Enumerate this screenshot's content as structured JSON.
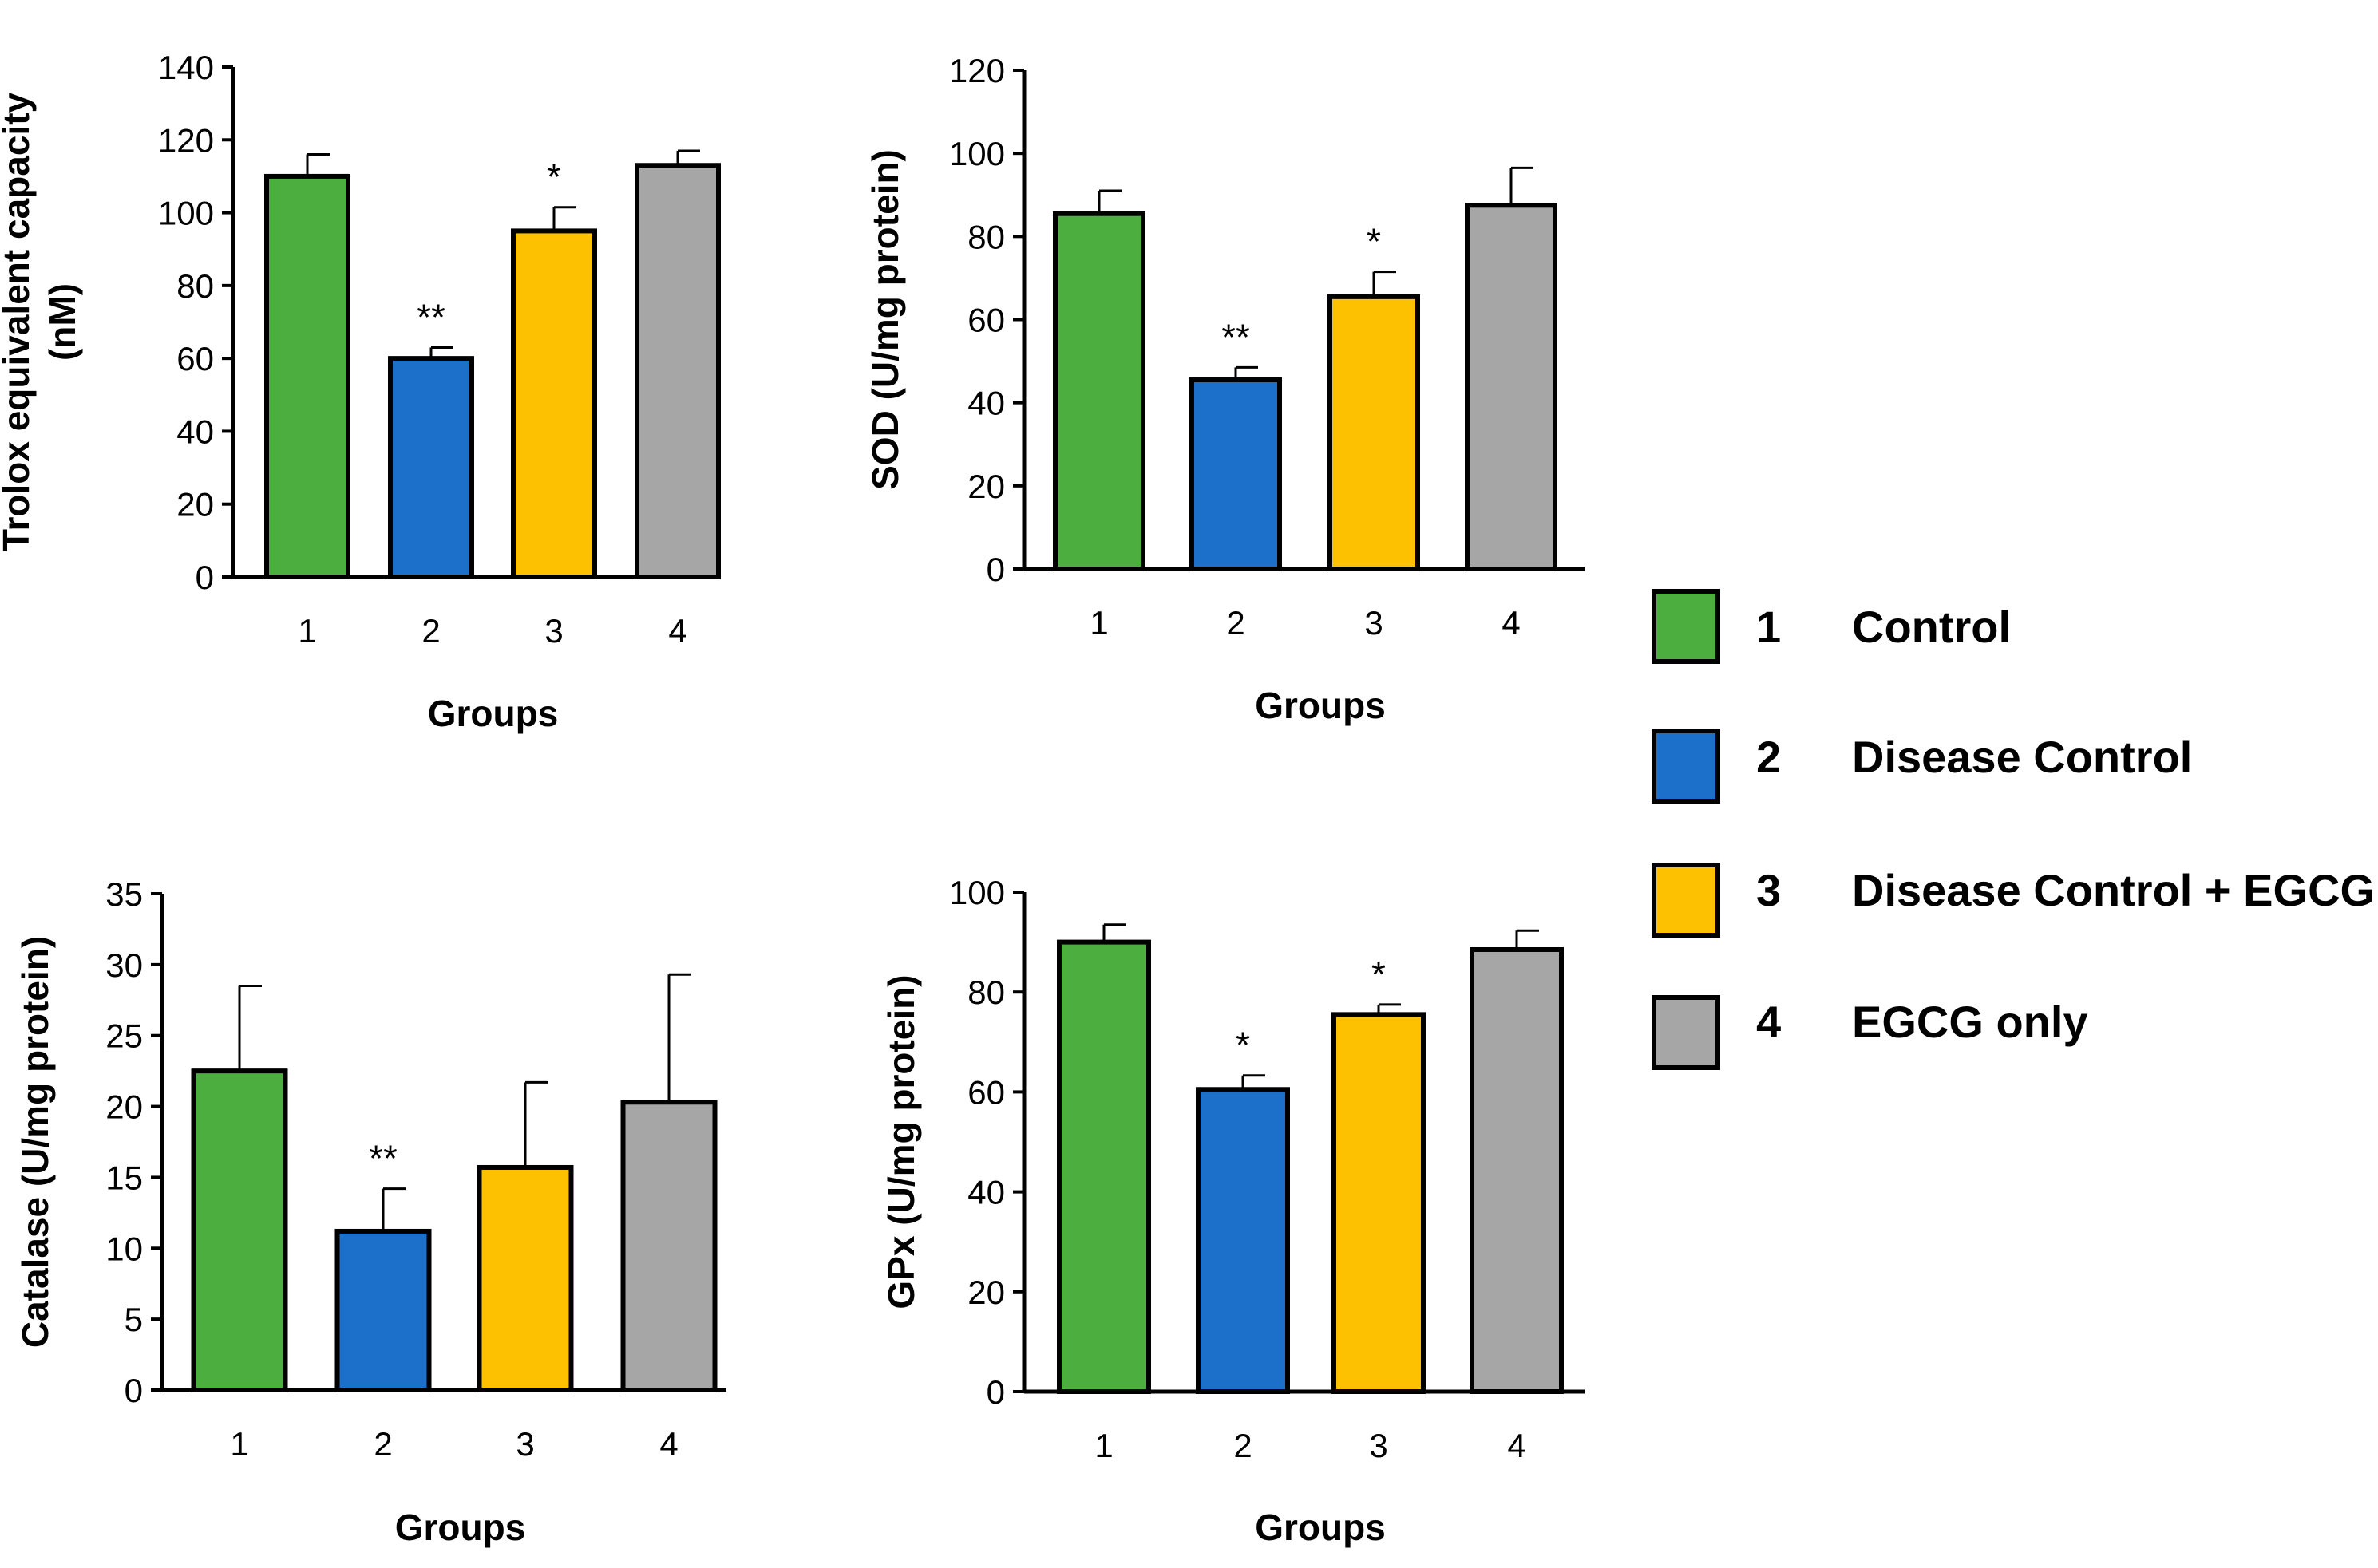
{
  "chart_data": [
    {
      "type": "bar",
      "ylabel_lines": [
        "Trolox equivalent capacity",
        "(nM)"
      ],
      "xlabel": "Groups",
      "categories": [
        "1",
        "2",
        "3",
        "4"
      ],
      "values": [
        110,
        60,
        95,
        113
      ],
      "errors": [
        6,
        3,
        6.5,
        4
      ],
      "significance": [
        "",
        "**",
        "*",
        ""
      ],
      "ylim": [
        0,
        140
      ],
      "yticks": [
        "0",
        "20",
        "40",
        "60",
        "80",
        "100",
        "120",
        "140"
      ]
    },
    {
      "type": "bar",
      "ylabel_lines": [
        "SOD (U/mg protein)"
      ],
      "xlabel": "Groups",
      "categories": [
        "1",
        "2",
        "3",
        "4"
      ],
      "values": [
        85.5,
        45.5,
        65.5,
        87.5
      ],
      "errors": [
        5.5,
        3,
        6,
        9
      ],
      "significance": [
        "",
        "**",
        "*",
        ""
      ],
      "ylim": [
        0,
        120
      ],
      "yticks": [
        "0",
        "20",
        "40",
        "60",
        "80",
        "100",
        "120"
      ]
    },
    {
      "type": "bar",
      "ylabel_lines": [
        "Catalase (U/mg protein)"
      ],
      "xlabel": "Groups",
      "categories": [
        "1",
        "2",
        "3",
        "4"
      ],
      "values": [
        22.5,
        11.2,
        15.7,
        20.3
      ],
      "errors": [
        6,
        3,
        6,
        9
      ],
      "significance": [
        "",
        "**",
        "",
        ""
      ],
      "ylim": [
        0,
        35
      ],
      "yticks": [
        "0",
        "5",
        "10",
        "15",
        "20",
        "25",
        "30",
        "35"
      ]
    },
    {
      "type": "bar",
      "ylabel_lines": [
        "GPx (U/mg protein)"
      ],
      "xlabel": "Groups",
      "categories": [
        "1",
        "2",
        "3",
        "4"
      ],
      "values": [
        90,
        60.5,
        75.5,
        88.5
      ],
      "errors": [
        3.5,
        2.8,
        2,
        3.8
      ],
      "significance": [
        "",
        "*",
        "*",
        ""
      ],
      "ylim": [
        0,
        100
      ],
      "yticks": [
        "0",
        "20",
        "40",
        "60",
        "80",
        "100"
      ]
    }
  ],
  "legend": [
    {
      "number": "1",
      "label": "Control",
      "color": "#4bae3f"
    },
    {
      "number": "2",
      "label": "Disease Control",
      "color": "#1c70c9"
    },
    {
      "number": "3",
      "label": "Disease Control + EGCG",
      "color": "#fdc102"
    },
    {
      "number": "4",
      "label": "EGCG only",
      "color": "#a6a6a6"
    }
  ]
}
